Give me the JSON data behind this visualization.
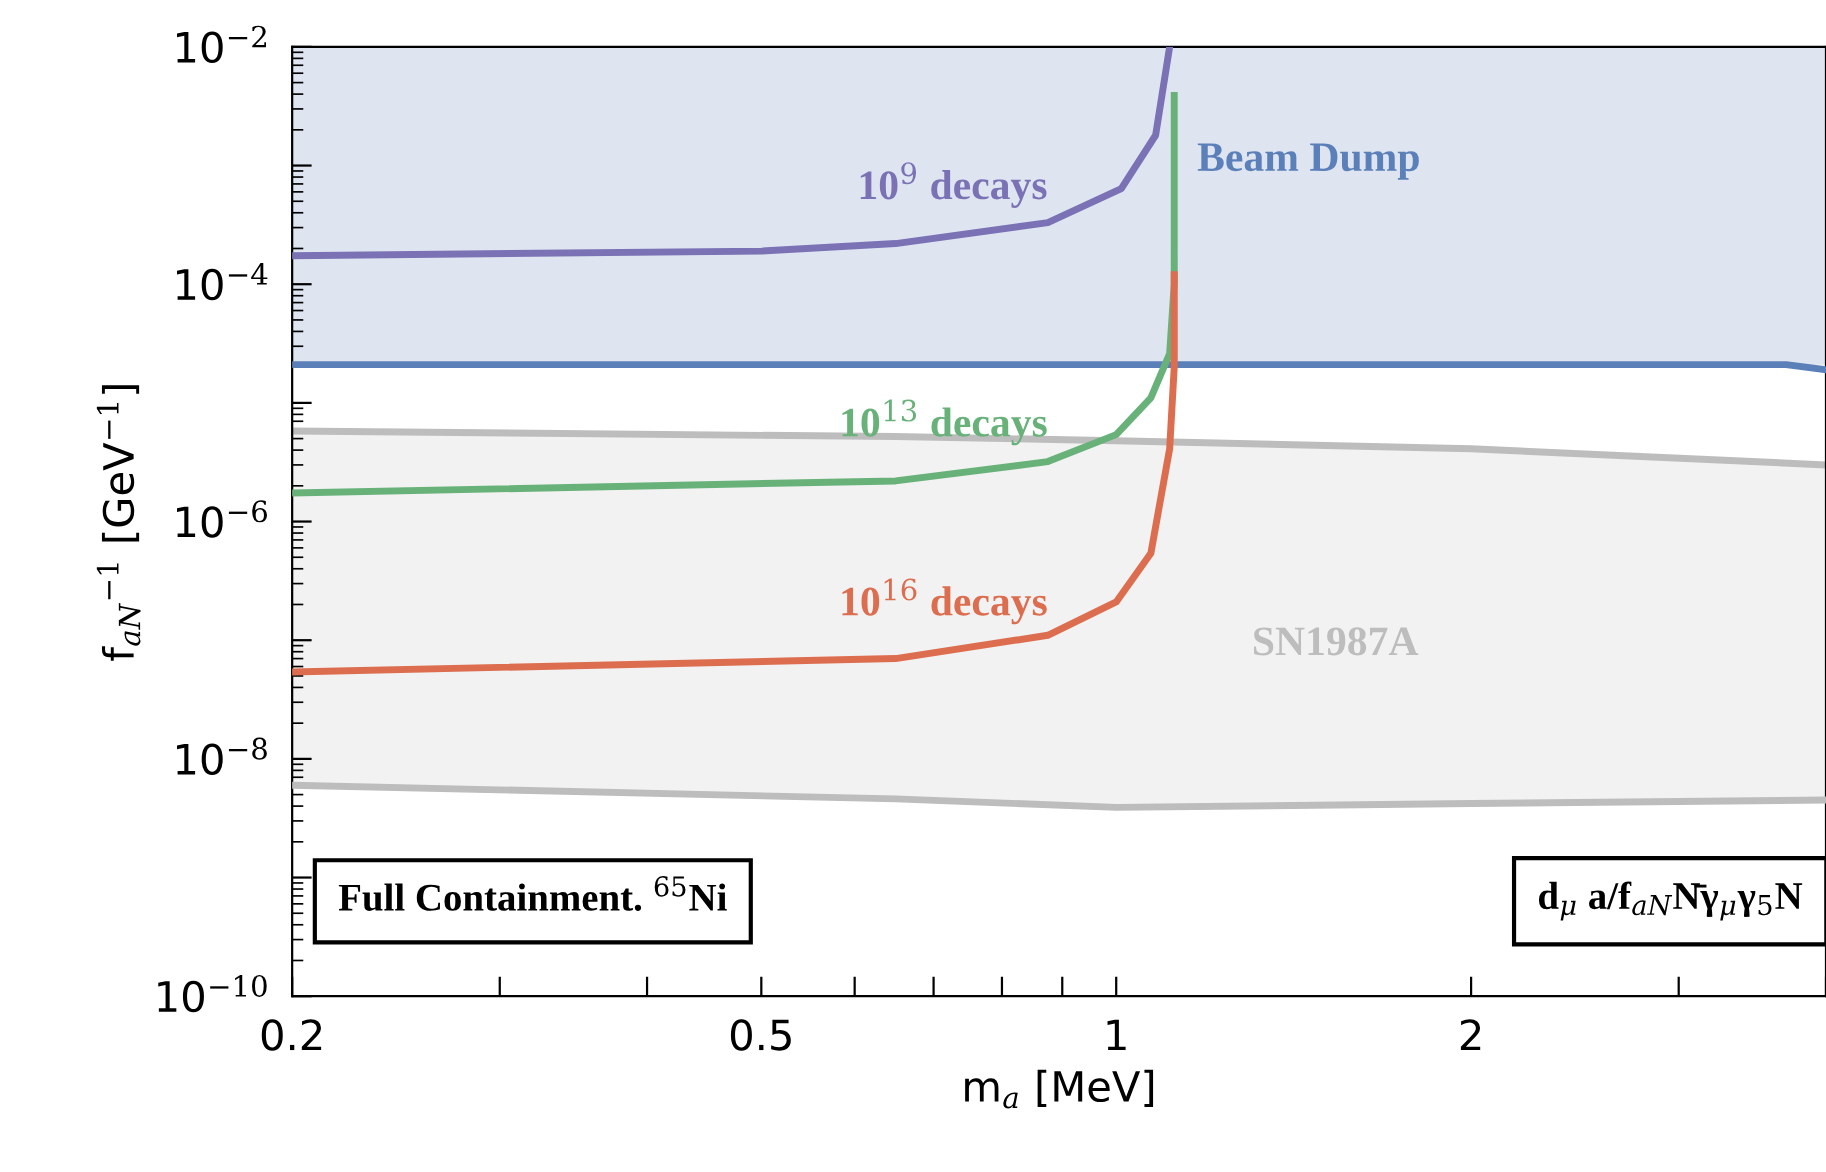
{
  "chart_data": {
    "type": "line",
    "xlabel": "m$_{a}$ [MeV]",
    "ylabel": "f$_{aN}$$^{−1}$ [GeV$^{−1}$]",
    "log": "xy",
    "grid": false,
    "legend": false,
    "xlim": [
      0.2,
      4
    ],
    "ylim": [
      1e-10,
      0.01
    ],
    "xticks": [
      0.2,
      {
        "value": 0.3,
        "label": null
      },
      {
        "value": 0.4,
        "label": null
      },
      0.5,
      {
        "value": 0.6,
        "label": null
      },
      {
        "value": 0.7,
        "label": null
      },
      {
        "value": 0.8,
        "label": null
      },
      {
        "value": 0.9,
        "label": null
      },
      1,
      2,
      {
        "value": 3,
        "label": null
      },
      {
        "value": 4,
        "label": null
      }
    ],
    "yticks": [
      {
        "value": 1e-10,
        "label": "10$^{−10}$"
      },
      {
        "value": 1e-09,
        "label": null
      },
      {
        "value": 1e-08,
        "label": "10$^{−8}$"
      },
      {
        "value": 1e-07,
        "label": null
      },
      {
        "value": 1e-06,
        "label": "10$^{−6}$"
      },
      {
        "value": 1e-05,
        "label": null
      },
      {
        "value": 0.0001,
        "label": "10$^{−4}$"
      },
      {
        "value": 0.001,
        "label": null
      },
      {
        "value": 0.01,
        "label": "10$^{−2}$"
      }
    ],
    "series": [
      {
        "name": "SN1987A",
        "type": "area",
        "color": "#bdbdbd",
        "x": [
          0.2,
          0.65,
          1,
          2,
          4
        ],
        "values": [
          5.8e-06,
          5.2e-06,
          4.8e-06,
          4.1e-06,
          3e-06
        ]
      },
      {
        "type": "line",
        "color": "#bdbdbd",
        "x": [
          0.2,
          0.65,
          1,
          2,
          4
        ],
        "values": [
          6e-09,
          4.6e-09,
          3.9e-09,
          4.2e-09,
          4.5e-09
        ]
      },
      {
        "color": "#5b7fb8",
        "x": [
          0.2,
          0.5,
          1,
          2,
          3.7,
          4
        ],
        "values": [
          2.1e-05,
          2.1e-05,
          2.1e-05,
          2.1e-05,
          2.1e-05,
          1.9e-05
        ]
      },
      {
        "name": "10$^{9}$ decays",
        "type": "line",
        "color": "#7b72b5",
        "x": [
          0.2,
          0.5,
          0.65,
          0.875,
          1.01,
          1.08,
          1.11
        ],
        "values": [
          0.000174,
          0.00019,
          0.00022,
          0.00033,
          0.00064,
          0.0018,
          0.01
        ]
      },
      {
        "name": "10$^{13}$ decays",
        "type": "line",
        "color": "#68b27a",
        "x": [
          0.2,
          0.65,
          0.875,
          1.0,
          1.07,
          1.11,
          1.12,
          1.12
        ],
        "values": [
          1.74e-06,
          2.2e-06,
          3.2e-06,
          5.4e-06,
          1.1e-05,
          2.6e-05,
          0.0001,
          0.0039
        ]
      },
      {
        "name": "10$^{16}$ decays",
        "type": "line",
        "color": "#dd6d4f",
        "x": [
          0.2,
          0.65,
          0.875,
          1.0,
          1.07,
          1.11,
          1.12,
          1.12
        ],
        "values": [
          5.4e-08,
          7e-08,
          1.1e-07,
          2.1e-07,
          5.4e-07,
          4.1e-06,
          2e-05,
          0.00012
        ]
      }
    ],
    "bands": [
      {
        "axis": "y",
        "from": 2.1e-05,
        "to": 0.01,
        "label": "Beam Dump",
        "color": "#5b7fb8"
      }
    ],
    "annotations": [
      "Full Containment. $^{65}$Ni",
      "d$_{μ}$ a/f$_{aN}$N̄γ$_{μ}$γ$_{5}$N"
    ]
  }
}
